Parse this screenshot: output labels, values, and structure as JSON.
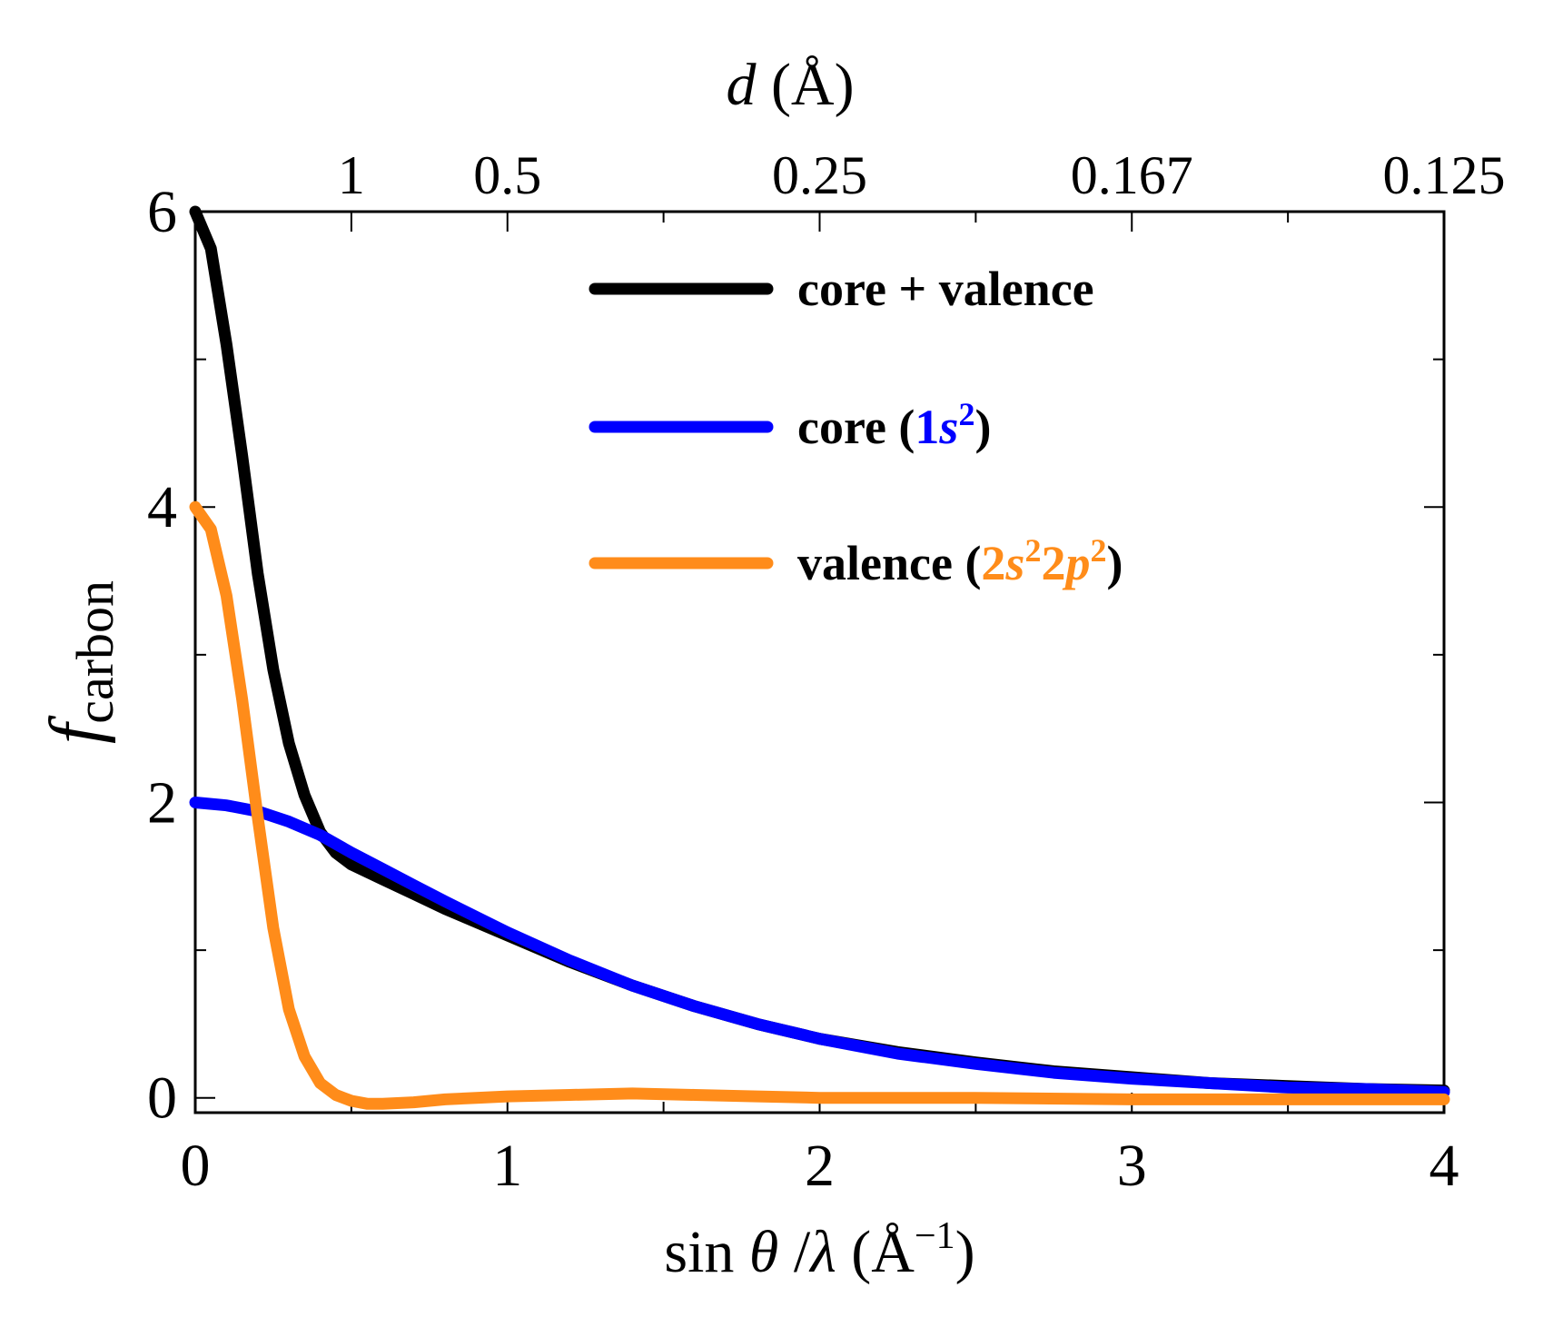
{
  "chart_data": {
    "type": "line",
    "xlabel": "sin θ /λ (Å⁻¹)",
    "xlabel_parts": {
      "pre": "sin ",
      "theta": "θ",
      "mid": " /",
      "lambda": "λ",
      "unit_open": " (Å",
      "unit_exp": "−1",
      "unit_close": ")"
    },
    "ylabel": "f carbon",
    "ylabel_parts": {
      "f": "f",
      "sub": "carbon"
    },
    "top_xlabel": "d (Å)",
    "top_xlabel_parts": {
      "d": "d",
      "unit": " (Å)"
    },
    "xlim": [
      0,
      4
    ],
    "ylim": [
      -0.1,
      6
    ],
    "x_ticks": [
      0,
      1,
      2,
      3,
      4
    ],
    "x_tick_labels": [
      "0",
      "1",
      "2",
      "3",
      "4"
    ],
    "y_ticks": [
      0,
      2,
      4,
      6
    ],
    "y_tick_labels": [
      "0",
      "2",
      "4",
      "6"
    ],
    "top_ticks": [
      {
        "pos": 0.5,
        "label": "1"
      },
      {
        "pos": 1.0,
        "label": "0.5"
      },
      {
        "pos": 2.0,
        "label": "0.25"
      },
      {
        "pos": 3.0,
        "label": "0.167"
      },
      {
        "pos": 4.0,
        "label": "0.125"
      }
    ],
    "series": [
      {
        "name": "core + valence",
        "color": "#000000",
        "x": [
          0,
          0.05,
          0.1,
          0.15,
          0.2,
          0.25,
          0.3,
          0.35,
          0.4,
          0.45,
          0.5,
          0.6,
          0.7,
          0.8,
          1.0,
          1.2,
          1.4,
          1.6,
          1.8,
          2.0,
          2.25,
          2.5,
          2.75,
          3.0,
          3.25,
          3.5,
          3.75,
          4.0
        ],
        "values": [
          6.0,
          5.75,
          5.1,
          4.35,
          3.55,
          2.9,
          2.4,
          2.05,
          1.8,
          1.66,
          1.58,
          1.48,
          1.38,
          1.28,
          1.1,
          0.92,
          0.76,
          0.62,
          0.5,
          0.4,
          0.31,
          0.24,
          0.18,
          0.14,
          0.1,
          0.08,
          0.06,
          0.05
        ]
      },
      {
        "name": "core (1s²)",
        "color": "#0000ff",
        "x": [
          0,
          0.1,
          0.2,
          0.3,
          0.4,
          0.5,
          0.6,
          0.7,
          0.8,
          1.0,
          1.2,
          1.4,
          1.6,
          1.8,
          2.0,
          2.25,
          2.5,
          2.75,
          3.0,
          3.25,
          3.5,
          3.75,
          4.0
        ],
        "values": [
          2.0,
          1.98,
          1.94,
          1.87,
          1.78,
          1.66,
          1.55,
          1.44,
          1.33,
          1.12,
          0.93,
          0.76,
          0.62,
          0.5,
          0.4,
          0.3,
          0.23,
          0.17,
          0.13,
          0.1,
          0.07,
          0.06,
          0.04
        ]
      },
      {
        "name": "valence (2s²2p²)",
        "color": "#ff8c1a",
        "x": [
          0,
          0.05,
          0.1,
          0.15,
          0.2,
          0.25,
          0.3,
          0.35,
          0.4,
          0.45,
          0.5,
          0.55,
          0.6,
          0.7,
          0.8,
          0.9,
          1.0,
          1.2,
          1.4,
          1.6,
          1.8,
          2.0,
          2.5,
          3.0,
          3.5,
          4.0
        ],
        "values": [
          4.0,
          3.85,
          3.4,
          2.7,
          1.9,
          1.15,
          0.6,
          0.28,
          0.1,
          0.02,
          -0.02,
          -0.04,
          -0.04,
          -0.03,
          -0.01,
          0.0,
          0.01,
          0.02,
          0.03,
          0.02,
          0.01,
          0.0,
          0.0,
          -0.01,
          -0.01,
          -0.01
        ]
      }
    ],
    "legend": {
      "placement": "top-right",
      "entries": [
        {
          "prefix": "core + valence",
          "parts": []
        },
        {
          "prefix": "core (",
          "parts": [
            {
              "t": "1",
              "style": "colored"
            },
            {
              "t": "s",
              "style": "colored-italic"
            },
            {
              "t": "2",
              "style": "colored-sup"
            }
          ],
          "suffix": ")"
        },
        {
          "prefix": "valence (",
          "parts": [
            {
              "t": "2",
              "style": "colored"
            },
            {
              "t": "s",
              "style": "colored-italic"
            },
            {
              "t": "2",
              "style": "colored-sup"
            },
            {
              "t": "2",
              "style": "colored"
            },
            {
              "t": "p",
              "style": "colored-italic"
            },
            {
              "t": "2",
              "style": "colored-sup"
            }
          ],
          "suffix": ")"
        }
      ]
    }
  }
}
